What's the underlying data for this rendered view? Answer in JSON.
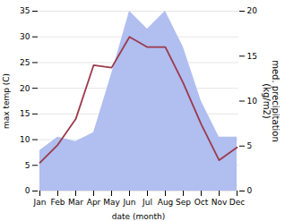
{
  "chart_data": {
    "type": "line",
    "categories": [
      "Jan",
      "Feb",
      "Mar",
      "Apr",
      "May",
      "Jun",
      "Jul",
      "Aug",
      "Sep",
      "Oct",
      "Nov",
      "Dec"
    ],
    "xlabel": "date (month)",
    "ylabel": "max temp (C)",
    "y2label": "med. precipitation\n(kg/m2)",
    "ylim": [
      0,
      35
    ],
    "yticks": [
      0,
      5,
      10,
      15,
      20,
      25,
      30,
      35
    ],
    "y2lim": [
      0,
      20
    ],
    "y2ticks": [
      0,
      5,
      10,
      15,
      20
    ],
    "grid": true,
    "series": [
      {
        "type": "area",
        "axis": "y2",
        "color": "#b0bef0",
        "values": [
          4.5,
          6.0,
          5.5,
          6.5,
          13.0,
          20.0,
          18.0,
          20.0,
          16.0,
          10.0,
          6.0,
          6.0
        ]
      },
      {
        "type": "line",
        "color": "#9b3a4a",
        "values": [
          5.5,
          9.0,
          14.0,
          24.5,
          24.0,
          30.0,
          28.0,
          28.0,
          21.0,
          13.0,
          6.0,
          8.5
        ]
      }
    ]
  }
}
